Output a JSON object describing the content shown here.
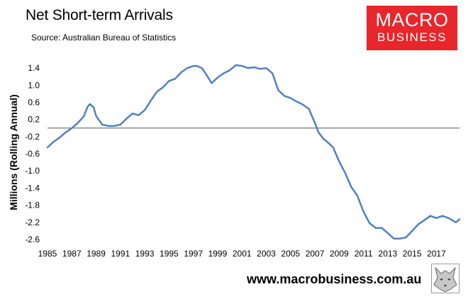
{
  "header": {
    "title": "Net Short-term Arrivals",
    "subtitle": "Source: Australian Bureau of Statistics"
  },
  "logo": {
    "line1": "MACRO",
    "line2": "BUSINESS",
    "color": "#e8262b"
  },
  "footer": {
    "website": "www.macrobusiness.com.au"
  },
  "chart_data": {
    "type": "line",
    "title": "Net Short-term Arrivals",
    "ylabel": "Millions (Rolling Annual)",
    "xlabel": "",
    "ylim": [
      -2.6,
      1.6
    ],
    "xlim": [
      1985.0,
      2018.9
    ],
    "x_ticks": [
      "1985",
      "1987",
      "1989",
      "1991",
      "1993",
      "1995",
      "1997",
      "1999",
      "2001",
      "2003",
      "2005",
      "2007",
      "2009",
      "2011",
      "2013",
      "2015",
      "2017"
    ],
    "y_ticks": [
      "1.4",
      "1.0",
      "0.6",
      "0.2",
      "-0.2",
      "-0.6",
      "-1.0",
      "-1.4",
      "-1.8",
      "-2.2",
      "-2.6"
    ],
    "zero_line": true,
    "grid": false,
    "series": [
      {
        "color": "#4f81bd",
        "x": [
          1985.0,
          1985.5,
          1986.0,
          1986.5,
          1987.0,
          1987.5,
          1988.0,
          1988.3,
          1988.5,
          1988.8,
          1989.0,
          1989.5,
          1990.0,
          1990.5,
          1991.0,
          1991.5,
          1992.0,
          1992.5,
          1993.0,
          1993.5,
          1994.0,
          1994.5,
          1995.0,
          1995.5,
          1996.0,
          1996.5,
          1997.0,
          1997.3,
          1997.7,
          1998.0,
          1998.5,
          1999.0,
          1999.5,
          2000.0,
          2000.5,
          2001.0,
          2001.5,
          2002.0,
          2002.5,
          2003.0,
          2003.5,
          2004.0,
          2004.5,
          2005.0,
          2005.5,
          2006.0,
          2006.5,
          2007.0,
          2007.3,
          2007.7,
          2008.0,
          2008.5,
          2009.0,
          2009.5,
          2010.0,
          2010.5,
          2011.0,
          2011.5,
          2012.0,
          2012.5,
          2013.0,
          2013.5,
          2014.0,
          2014.5,
          2015.0,
          2015.5,
          2016.0,
          2016.5,
          2017.0,
          2017.5,
          2018.0,
          2018.3,
          2018.6,
          2018.9
        ],
        "y": [
          -0.45,
          -0.32,
          -0.22,
          -0.1,
          0.0,
          0.12,
          0.28,
          0.5,
          0.56,
          0.48,
          0.28,
          0.08,
          0.05,
          0.05,
          0.08,
          0.22,
          0.34,
          0.3,
          0.42,
          0.64,
          0.85,
          0.95,
          1.1,
          1.15,
          1.3,
          1.4,
          1.45,
          1.45,
          1.4,
          1.28,
          1.05,
          1.18,
          1.28,
          1.35,
          1.47,
          1.45,
          1.4,
          1.42,
          1.38,
          1.4,
          1.28,
          0.88,
          0.75,
          0.7,
          0.62,
          0.55,
          0.45,
          0.12,
          -0.1,
          -0.25,
          -0.32,
          -0.45,
          -0.78,
          -1.05,
          -1.38,
          -1.58,
          -1.95,
          -2.22,
          -2.33,
          -2.33,
          -2.45,
          -2.58,
          -2.58,
          -2.55,
          -2.4,
          -2.25,
          -2.15,
          -2.05,
          -2.1,
          -2.05,
          -2.1,
          -2.15,
          -2.2,
          -2.13
        ]
      }
    ]
  }
}
